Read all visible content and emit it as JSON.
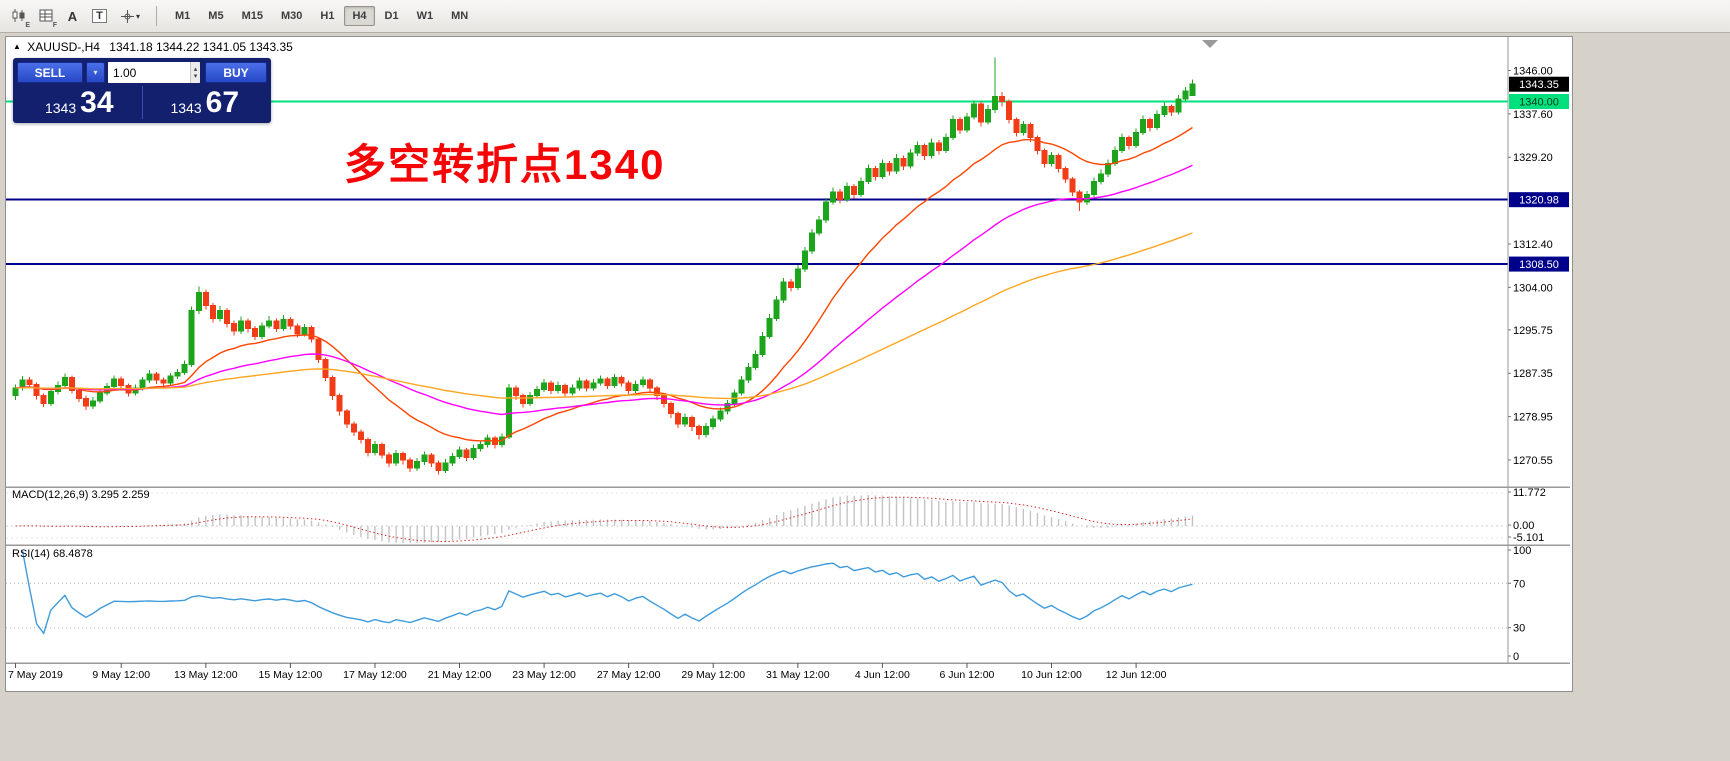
{
  "toolbar": {
    "icons": [
      {
        "name": "candlestick-tool-icon",
        "sub": "E"
      },
      {
        "name": "grid-tool-icon",
        "sub": "F"
      },
      {
        "name": "label-tool-icon",
        "glyph": "A"
      },
      {
        "name": "text-box-tool-icon",
        "glyph": "T"
      },
      {
        "name": "crosshair-tool-icon",
        "dropdown_glyph": "▾"
      }
    ],
    "timeframes": [
      {
        "label": "M1",
        "active": false
      },
      {
        "label": "M5",
        "active": false
      },
      {
        "label": "M15",
        "active": false
      },
      {
        "label": "M30",
        "active": false
      },
      {
        "label": "H1",
        "active": false
      },
      {
        "label": "H4",
        "active": true
      },
      {
        "label": "D1",
        "active": false
      },
      {
        "label": "W1",
        "active": false
      },
      {
        "label": "MN",
        "active": false
      }
    ]
  },
  "window": {
    "collapse_icon": "▲",
    "symbol": "XAUUSD-,H4",
    "ohlc": "1341.18 1344.22 1341.05 1343.35"
  },
  "trade_panel": {
    "sell_label": "SELL",
    "buy_label": "BUY",
    "dropdown_glyph": "▾",
    "lot_size": "1.00",
    "spinner_up": "▴",
    "spinner_down": "▾",
    "sell_price": {
      "main": "1343",
      "pips": "34"
    },
    "buy_price": {
      "main": "1343",
      "pips": "67"
    }
  },
  "annotation": {
    "text": "多空转折点1340",
    "color": "#f50505"
  },
  "chart_data": {
    "type": "candlestick",
    "symbol": "XAUUSD-",
    "timeframe": "H4",
    "last_ohlc": {
      "open": 1341.18,
      "high": 1344.22,
      "low": 1341.05,
      "close": 1343.35
    },
    "y_min": 1265.5,
    "y_max": 1352.5,
    "colors": {
      "up": "#1ca51c",
      "down": "#f23b17",
      "ma_fast": "#ff4500",
      "ma_mid": "#ff00ff",
      "ma_slow": "#ffa520",
      "macd_hist": "#c4c4c4",
      "macd_signal": "#d22b2b",
      "rsi": "#3e9bdc",
      "hline_green": "#00e07d",
      "hline_blue": "#00008b"
    },
    "moving_averages": [
      {
        "period": 20,
        "color": "#ff4500"
      },
      {
        "period": 50,
        "color": "#ff00ff"
      },
      {
        "period": 110,
        "color": "#ffa520"
      }
    ],
    "hlines": [
      {
        "price": 1340.0,
        "color": "#00e07d",
        "width": 2
      },
      {
        "price": 1320.98,
        "color": "#00008b",
        "width": 2
      },
      {
        "price": 1308.5,
        "color": "#00008b",
        "width": 2
      }
    ],
    "price_axis": [
      "1346.00",
      "1337.60",
      "1329.20",
      "1312.40",
      "1304.00",
      "1295.75",
      "1287.35",
      "1278.95",
      "1270.55"
    ],
    "badges": [
      {
        "text": "1343.35",
        "price": 1343.35,
        "bg": "#000000",
        "fg": "#ffffff"
      },
      {
        "text": "1340.00",
        "price": 1340.0,
        "bg": "#00e07d",
        "fg": "#003a1e"
      },
      {
        "text": "1320.98",
        "price": 1320.98,
        "bg": "#00008b",
        "fg": "#ffffff"
      },
      {
        "text": "1308.50",
        "price": 1308.5,
        "bg": "#00008b",
        "fg": "#ffffff"
      }
    ],
    "time_labels": [
      "7 May 2019",
      "9 May 12:00",
      "13 May 12:00",
      "15 May 12:00",
      "17 May 12:00",
      "21 May 12:00",
      "23 May 12:00",
      "27 May 12:00",
      "29 May 12:00",
      "31 May 12:00",
      "4 Jun 12:00",
      "6 Jun 12:00",
      "10 Jun 12:00",
      "12 Jun 12:00"
    ],
    "macd": {
      "label": "MACD(12,26,9) 3.295 2.259",
      "fast": 12,
      "slow": 26,
      "signal": 9,
      "axis": [
        "11.772",
        "0.00",
        "-5.101"
      ]
    },
    "rsi": {
      "label": "RSI(14) 68.4878",
      "period": 14,
      "levels": [
        70,
        30
      ],
      "axis": [
        "100",
        "70",
        "30",
        "0"
      ]
    },
    "candles": [
      [
        1283.0,
        1285.2,
        1282.2,
        1284.5
      ],
      [
        1284.5,
        1286.8,
        1284.0,
        1286.0
      ],
      [
        1286.0,
        1286.6,
        1284.4,
        1285.2
      ],
      [
        1285.2,
        1285.6,
        1282.3,
        1283.0
      ],
      [
        1283.0,
        1283.4,
        1280.8,
        1281.5
      ],
      [
        1281.5,
        1284.4,
        1281.0,
        1283.8
      ],
      [
        1283.8,
        1285.7,
        1283.2,
        1285.0
      ],
      [
        1285.0,
        1287.3,
        1284.6,
        1286.5
      ],
      [
        1286.5,
        1286.9,
        1283.4,
        1284.0
      ],
      [
        1284.0,
        1284.5,
        1281.8,
        1282.5
      ],
      [
        1282.5,
        1283.0,
        1280.2,
        1281.0
      ],
      [
        1281.0,
        1282.7,
        1280.4,
        1282.0
      ],
      [
        1282.0,
        1284.1,
        1281.5,
        1283.5
      ],
      [
        1283.5,
        1285.5,
        1283.0,
        1284.8
      ],
      [
        1284.8,
        1286.9,
        1284.2,
        1286.2
      ],
      [
        1286.2,
        1286.7,
        1284.3,
        1285.0
      ],
      [
        1285.0,
        1285.4,
        1282.8,
        1283.5
      ],
      [
        1283.5,
        1285.2,
        1283.0,
        1284.5
      ],
      [
        1284.5,
        1286.6,
        1284.0,
        1286.0
      ],
      [
        1286.0,
        1288.0,
        1285.5,
        1287.2
      ],
      [
        1287.2,
        1287.6,
        1285.3,
        1286.0
      ],
      [
        1286.0,
        1286.5,
        1284.8,
        1285.5
      ],
      [
        1285.5,
        1287.4,
        1285.0,
        1286.8
      ],
      [
        1286.8,
        1288.2,
        1286.2,
        1287.5
      ],
      [
        1287.5,
        1289.8,
        1287.0,
        1289.0
      ],
      [
        1289.0,
        1300.3,
        1288.6,
        1299.5
      ],
      [
        1299.5,
        1304.2,
        1298.8,
        1303.0
      ],
      [
        1303.0,
        1303.6,
        1299.7,
        1300.5
      ],
      [
        1300.5,
        1301.0,
        1297.2,
        1298.0
      ],
      [
        1298.0,
        1300.4,
        1297.4,
        1299.5
      ],
      [
        1299.5,
        1300.0,
        1296.2,
        1297.0
      ],
      [
        1297.0,
        1297.6,
        1294.7,
        1295.5
      ],
      [
        1295.5,
        1298.3,
        1295.0,
        1297.5
      ],
      [
        1297.5,
        1298.0,
        1295.2,
        1296.0
      ],
      [
        1296.0,
        1296.5,
        1293.8,
        1294.5
      ],
      [
        1294.5,
        1297.2,
        1294.0,
        1296.5
      ],
      [
        1296.5,
        1298.4,
        1296.0,
        1297.5
      ],
      [
        1297.5,
        1298.0,
        1295.3,
        1296.0
      ],
      [
        1296.0,
        1298.6,
        1295.5,
        1297.8
      ],
      [
        1297.8,
        1298.2,
        1295.8,
        1296.5
      ],
      [
        1296.5,
        1297.0,
        1294.3,
        1295.0
      ],
      [
        1295.0,
        1296.9,
        1294.5,
        1296.2
      ],
      [
        1296.2,
        1296.6,
        1293.3,
        1294.0
      ],
      [
        1294.0,
        1294.4,
        1289.3,
        1290.0
      ],
      [
        1290.0,
        1290.4,
        1285.8,
        1286.5
      ],
      [
        1286.5,
        1286.9,
        1282.2,
        1283.0
      ],
      [
        1283.0,
        1283.4,
        1279.2,
        1280.0
      ],
      [
        1280.0,
        1280.4,
        1276.7,
        1277.5
      ],
      [
        1277.5,
        1278.0,
        1275.2,
        1276.0
      ],
      [
        1276.0,
        1276.4,
        1273.7,
        1274.5
      ],
      [
        1274.5,
        1274.9,
        1271.2,
        1272.0
      ],
      [
        1272.0,
        1274.2,
        1271.4,
        1273.5
      ],
      [
        1273.5,
        1273.9,
        1270.8,
        1271.5
      ],
      [
        1271.5,
        1272.0,
        1269.2,
        1270.0
      ],
      [
        1270.0,
        1272.5,
        1269.4,
        1271.8
      ],
      [
        1271.8,
        1272.2,
        1269.7,
        1270.5
      ],
      [
        1270.5,
        1271.0,
        1268.2,
        1269.0
      ],
      [
        1269.0,
        1270.9,
        1268.4,
        1270.2
      ],
      [
        1270.2,
        1272.2,
        1269.6,
        1271.5
      ],
      [
        1271.5,
        1271.9,
        1269.2,
        1270.0
      ],
      [
        1270.0,
        1270.4,
        1267.7,
        1268.5
      ],
      [
        1268.5,
        1270.7,
        1268.0,
        1270.0
      ],
      [
        1270.0,
        1271.9,
        1269.4,
        1271.2
      ],
      [
        1271.2,
        1273.2,
        1270.7,
        1272.5
      ],
      [
        1272.5,
        1272.9,
        1270.3,
        1271.0
      ],
      [
        1271.0,
        1273.5,
        1270.5,
        1272.8
      ],
      [
        1272.8,
        1274.2,
        1272.2,
        1273.5
      ],
      [
        1273.5,
        1275.5,
        1273.0,
        1274.8
      ],
      [
        1274.8,
        1275.2,
        1272.8,
        1273.5
      ],
      [
        1273.5,
        1275.7,
        1273.0,
        1275.0
      ],
      [
        1275.0,
        1285.3,
        1274.6,
        1284.5
      ],
      [
        1284.5,
        1285.0,
        1282.2,
        1283.0
      ],
      [
        1283.0,
        1283.4,
        1280.7,
        1281.5
      ],
      [
        1281.5,
        1283.7,
        1281.0,
        1283.0
      ],
      [
        1283.0,
        1284.9,
        1282.5,
        1284.2
      ],
      [
        1284.2,
        1286.2,
        1283.7,
        1285.5
      ],
      [
        1285.5,
        1285.9,
        1283.3,
        1284.0
      ],
      [
        1284.0,
        1285.7,
        1283.4,
        1285.0
      ],
      [
        1285.0,
        1285.4,
        1282.8,
        1283.5
      ],
      [
        1283.5,
        1285.2,
        1283.0,
        1284.5
      ],
      [
        1284.5,
        1286.5,
        1284.0,
        1285.8
      ],
      [
        1285.8,
        1286.2,
        1283.8,
        1284.5
      ],
      [
        1284.5,
        1286.2,
        1284.0,
        1285.5
      ],
      [
        1285.5,
        1286.9,
        1285.0,
        1286.2
      ],
      [
        1286.2,
        1286.6,
        1284.3,
        1285.0
      ],
      [
        1285.0,
        1287.2,
        1284.5,
        1286.5
      ],
      [
        1286.5,
        1286.9,
        1284.8,
        1285.5
      ],
      [
        1285.5,
        1285.9,
        1283.3,
        1284.0
      ],
      [
        1284.0,
        1285.9,
        1283.5,
        1285.2
      ],
      [
        1285.2,
        1286.7,
        1284.6,
        1286.0
      ],
      [
        1286.0,
        1286.4,
        1283.8,
        1284.5
      ],
      [
        1284.5,
        1284.9,
        1282.2,
        1283.0
      ],
      [
        1283.0,
        1283.4,
        1280.7,
        1281.5
      ],
      [
        1281.5,
        1281.9,
        1278.7,
        1279.5
      ],
      [
        1279.5,
        1279.9,
        1276.7,
        1277.5
      ],
      [
        1277.5,
        1279.5,
        1276.9,
        1278.8
      ],
      [
        1278.8,
        1279.2,
        1276.2,
        1277.0
      ],
      [
        1277.0,
        1277.4,
        1274.5,
        1275.5
      ],
      [
        1275.5,
        1277.7,
        1274.9,
        1277.0
      ],
      [
        1277.0,
        1279.2,
        1276.4,
        1278.5
      ],
      [
        1278.5,
        1280.7,
        1278.0,
        1280.0
      ],
      [
        1280.0,
        1282.2,
        1279.4,
        1281.5
      ],
      [
        1281.5,
        1284.2,
        1281.0,
        1283.5
      ],
      [
        1283.5,
        1286.8,
        1283.0,
        1286.0
      ],
      [
        1286.0,
        1289.3,
        1285.5,
        1288.5
      ],
      [
        1288.5,
        1291.8,
        1288.0,
        1291.0
      ],
      [
        1291.0,
        1295.3,
        1290.5,
        1294.5
      ],
      [
        1294.5,
        1298.8,
        1294.0,
        1298.0
      ],
      [
        1298.0,
        1302.3,
        1297.5,
        1301.5
      ],
      [
        1301.5,
        1305.8,
        1301.0,
        1305.0
      ],
      [
        1305.0,
        1305.6,
        1303.2,
        1304.0
      ],
      [
        1304.0,
        1308.3,
        1303.5,
        1307.5
      ],
      [
        1307.5,
        1311.8,
        1307.0,
        1311.0
      ],
      [
        1311.0,
        1315.3,
        1310.5,
        1314.5
      ],
      [
        1314.5,
        1317.8,
        1314.0,
        1317.0
      ],
      [
        1317.0,
        1321.3,
        1316.5,
        1320.5
      ],
      [
        1320.5,
        1323.3,
        1320.0,
        1322.5
      ],
      [
        1322.5,
        1323.0,
        1320.2,
        1321.0
      ],
      [
        1321.0,
        1324.3,
        1320.5,
        1323.5
      ],
      [
        1323.5,
        1324.0,
        1321.2,
        1322.0
      ],
      [
        1322.0,
        1325.3,
        1321.5,
        1324.5
      ],
      [
        1324.5,
        1327.8,
        1324.0,
        1327.0
      ],
      [
        1327.0,
        1327.5,
        1324.7,
        1325.5
      ],
      [
        1325.5,
        1328.8,
        1325.0,
        1328.0
      ],
      [
        1328.0,
        1328.5,
        1325.7,
        1326.5
      ],
      [
        1326.5,
        1329.8,
        1326.0,
        1329.0
      ],
      [
        1329.0,
        1329.5,
        1326.7,
        1327.5
      ],
      [
        1327.5,
        1330.8,
        1327.0,
        1330.0
      ],
      [
        1330.0,
        1332.3,
        1329.4,
        1331.5
      ],
      [
        1331.5,
        1331.9,
        1328.7,
        1329.5
      ],
      [
        1329.5,
        1332.8,
        1329.0,
        1332.0
      ],
      [
        1332.0,
        1332.5,
        1329.7,
        1330.5
      ],
      [
        1330.5,
        1333.8,
        1330.0,
        1333.0
      ],
      [
        1333.0,
        1337.3,
        1332.5,
        1336.5
      ],
      [
        1336.5,
        1337.0,
        1333.7,
        1334.5
      ],
      [
        1334.5,
        1337.8,
        1334.0,
        1337.0
      ],
      [
        1337.0,
        1340.2,
        1336.5,
        1339.5
      ],
      [
        1339.5,
        1340.0,
        1335.2,
        1336.0
      ],
      [
        1336.0,
        1339.3,
        1335.5,
        1338.5
      ],
      [
        1338.5,
        1348.5,
        1337.8,
        1341.0
      ],
      [
        1341.0,
        1341.8,
        1339.0,
        1340.0
      ],
      [
        1340.0,
        1340.4,
        1335.7,
        1336.5
      ],
      [
        1336.5,
        1336.9,
        1333.2,
        1334.0
      ],
      [
        1334.0,
        1336.2,
        1333.4,
        1335.5
      ],
      [
        1335.5,
        1335.9,
        1332.2,
        1333.0
      ],
      [
        1333.0,
        1333.4,
        1329.7,
        1330.5
      ],
      [
        1330.5,
        1330.9,
        1327.2,
        1328.0
      ],
      [
        1328.0,
        1330.2,
        1327.4,
        1329.5
      ],
      [
        1329.5,
        1329.9,
        1326.2,
        1327.0
      ],
      [
        1327.0,
        1327.4,
        1324.2,
        1325.0
      ],
      [
        1325.0,
        1325.4,
        1321.7,
        1322.5
      ],
      [
        1322.5,
        1322.9,
        1318.8,
        1320.5
      ],
      [
        1320.5,
        1322.7,
        1319.9,
        1322.0
      ],
      [
        1322.0,
        1325.3,
        1321.5,
        1324.5
      ],
      [
        1324.5,
        1326.8,
        1323.9,
        1326.0
      ],
      [
        1326.0,
        1328.8,
        1325.4,
        1328.0
      ],
      [
        1328.0,
        1331.3,
        1327.5,
        1330.5
      ],
      [
        1330.5,
        1333.8,
        1330.0,
        1333.0
      ],
      [
        1333.0,
        1333.4,
        1330.7,
        1331.5
      ],
      [
        1331.5,
        1334.8,
        1331.0,
        1334.0
      ],
      [
        1334.0,
        1337.3,
        1333.5,
        1336.5
      ],
      [
        1336.5,
        1336.9,
        1334.2,
        1335.0
      ],
      [
        1335.0,
        1338.3,
        1334.5,
        1337.5
      ],
      [
        1337.5,
        1339.8,
        1337.0,
        1339.0
      ],
      [
        1339.0,
        1339.4,
        1337.2,
        1338.0
      ],
      [
        1338.0,
        1341.3,
        1337.5,
        1340.5
      ],
      [
        1340.5,
        1342.8,
        1340.0,
        1342.0
      ],
      [
        1341.18,
        1344.22,
        1341.05,
        1343.35
      ]
    ]
  }
}
